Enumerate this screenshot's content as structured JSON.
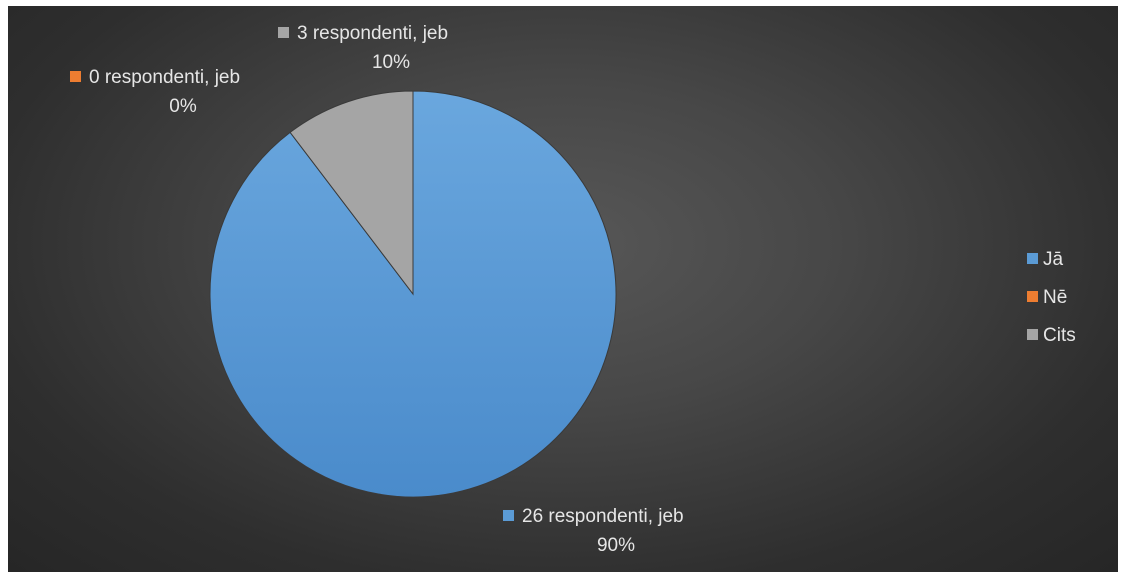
{
  "chart_data": {
    "type": "pie",
    "categories": [
      "Jā",
      "Nē",
      "Cits"
    ],
    "values": [
      26,
      0,
      3
    ],
    "percentages": [
      "90%",
      "0%",
      "10%"
    ],
    "colors": [
      "#5b9bd5",
      "#ed7d31",
      "#a5a5a5"
    ],
    "data_labels": [
      {
        "line1": "26 respondenti, jeb",
        "line2": "90%"
      },
      {
        "line1": "0 respondenti, jeb",
        "line2": "0%"
      },
      {
        "line1": "3 respondenti, jeb",
        "line2": "10%"
      }
    ],
    "legend": {
      "placement": "right",
      "items": [
        "Jā",
        "Nē",
        "Cits"
      ]
    }
  }
}
